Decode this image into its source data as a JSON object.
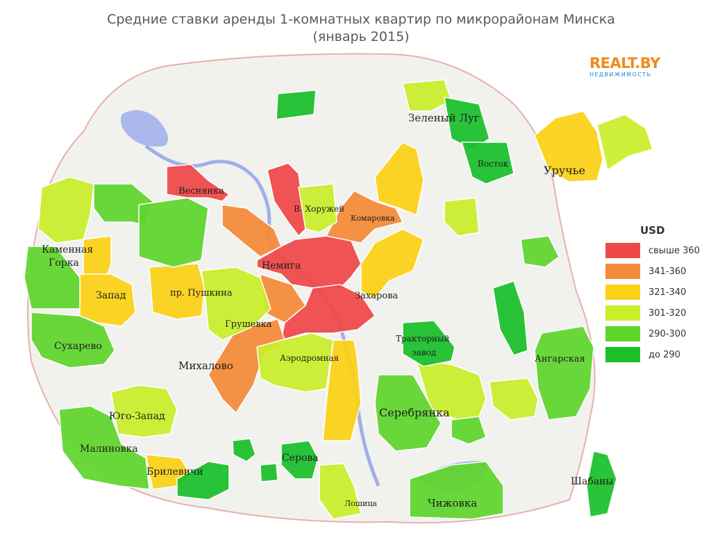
{
  "title": {
    "line1": "Средние ставки аренды 1-комнатных квартир по микрорайонам Минска",
    "line2": "(январь 2015)"
  },
  "logo": {
    "name": "REALT.BY",
    "tagline": "НЕДВИЖИМОСТЬ"
  },
  "legend": {
    "title": "USD",
    "items": [
      {
        "label": "свыше 360",
        "color": "#ef4747"
      },
      {
        "label": "341-360",
        "color": "#f58a38"
      },
      {
        "label": "321-340",
        "color": "#fcd116"
      },
      {
        "label": "301-320",
        "color": "#c9ee2a"
      },
      {
        "label": "290-300",
        "color": "#5fd52c"
      },
      {
        "label": "до 290",
        "color": "#19c02a"
      }
    ]
  },
  "districts": {
    "nemiga": "Немига",
    "vesnyanka": "Веснянка",
    "khoruzhey": "В. Хоружей",
    "komarovka": "Комаровка",
    "zakharova": "Захарова",
    "zeleny_lug": "Зеленый Луг",
    "vostok": "Восток",
    "uruchye": "Уручье",
    "kamennaya_gorka_1": "Каменная",
    "kamennaya_gorka_2": "Горка",
    "zapad": "Запад",
    "pushkina": "пр. Пушкина",
    "grushevka": "Грушевка",
    "sukharevo": "Сухарево",
    "mikhalovo": "Михалово",
    "aerodromnaya": "Аэродромная",
    "traktorny_1": "Тракторный",
    "traktorny_2": "завод",
    "angarskaya": "Ангарская",
    "yugo_zapad": "Юго-Запад",
    "serebryanka": "Серебрянка",
    "malinovka": "Малиновка",
    "serova": "Серова",
    "brilevichi": "Брилевичи",
    "shabany": "Шабаны",
    "loshitsa": "Лошица",
    "chizhovka": "Чижовка"
  }
}
